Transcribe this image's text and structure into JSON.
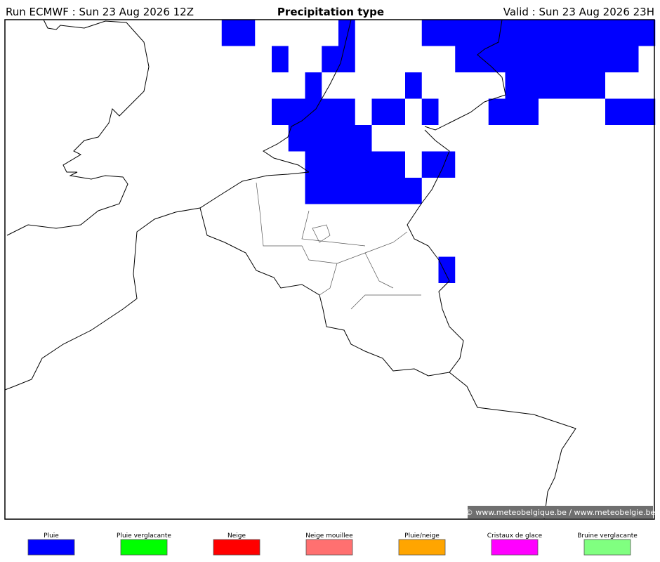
{
  "header": {
    "run": "Run ECMWF : Sun 23 Aug 2026 12Z",
    "title": "Precipitation type",
    "valid": "Valid : Sun 23 Aug 2026 23H"
  },
  "map": {
    "credit": "© www.meteobelgique.be / www.meteobelgie.be"
  },
  "legend": [
    {
      "label": "Pluie",
      "color": "#0000ff"
    },
    {
      "label": "Pluie verglacante",
      "color": "#00ff00"
    },
    {
      "label": "Neige",
      "color": "#ff0000"
    },
    {
      "label": "Neige mouillee",
      "color": "#ff7070"
    },
    {
      "label": "Pluie/neige",
      "color": "#ffa500"
    },
    {
      "label": "Cristaux de glace",
      "color": "#ff00ff"
    },
    {
      "label": "Bruine verglacante",
      "color": "#80ff80"
    }
  ]
}
